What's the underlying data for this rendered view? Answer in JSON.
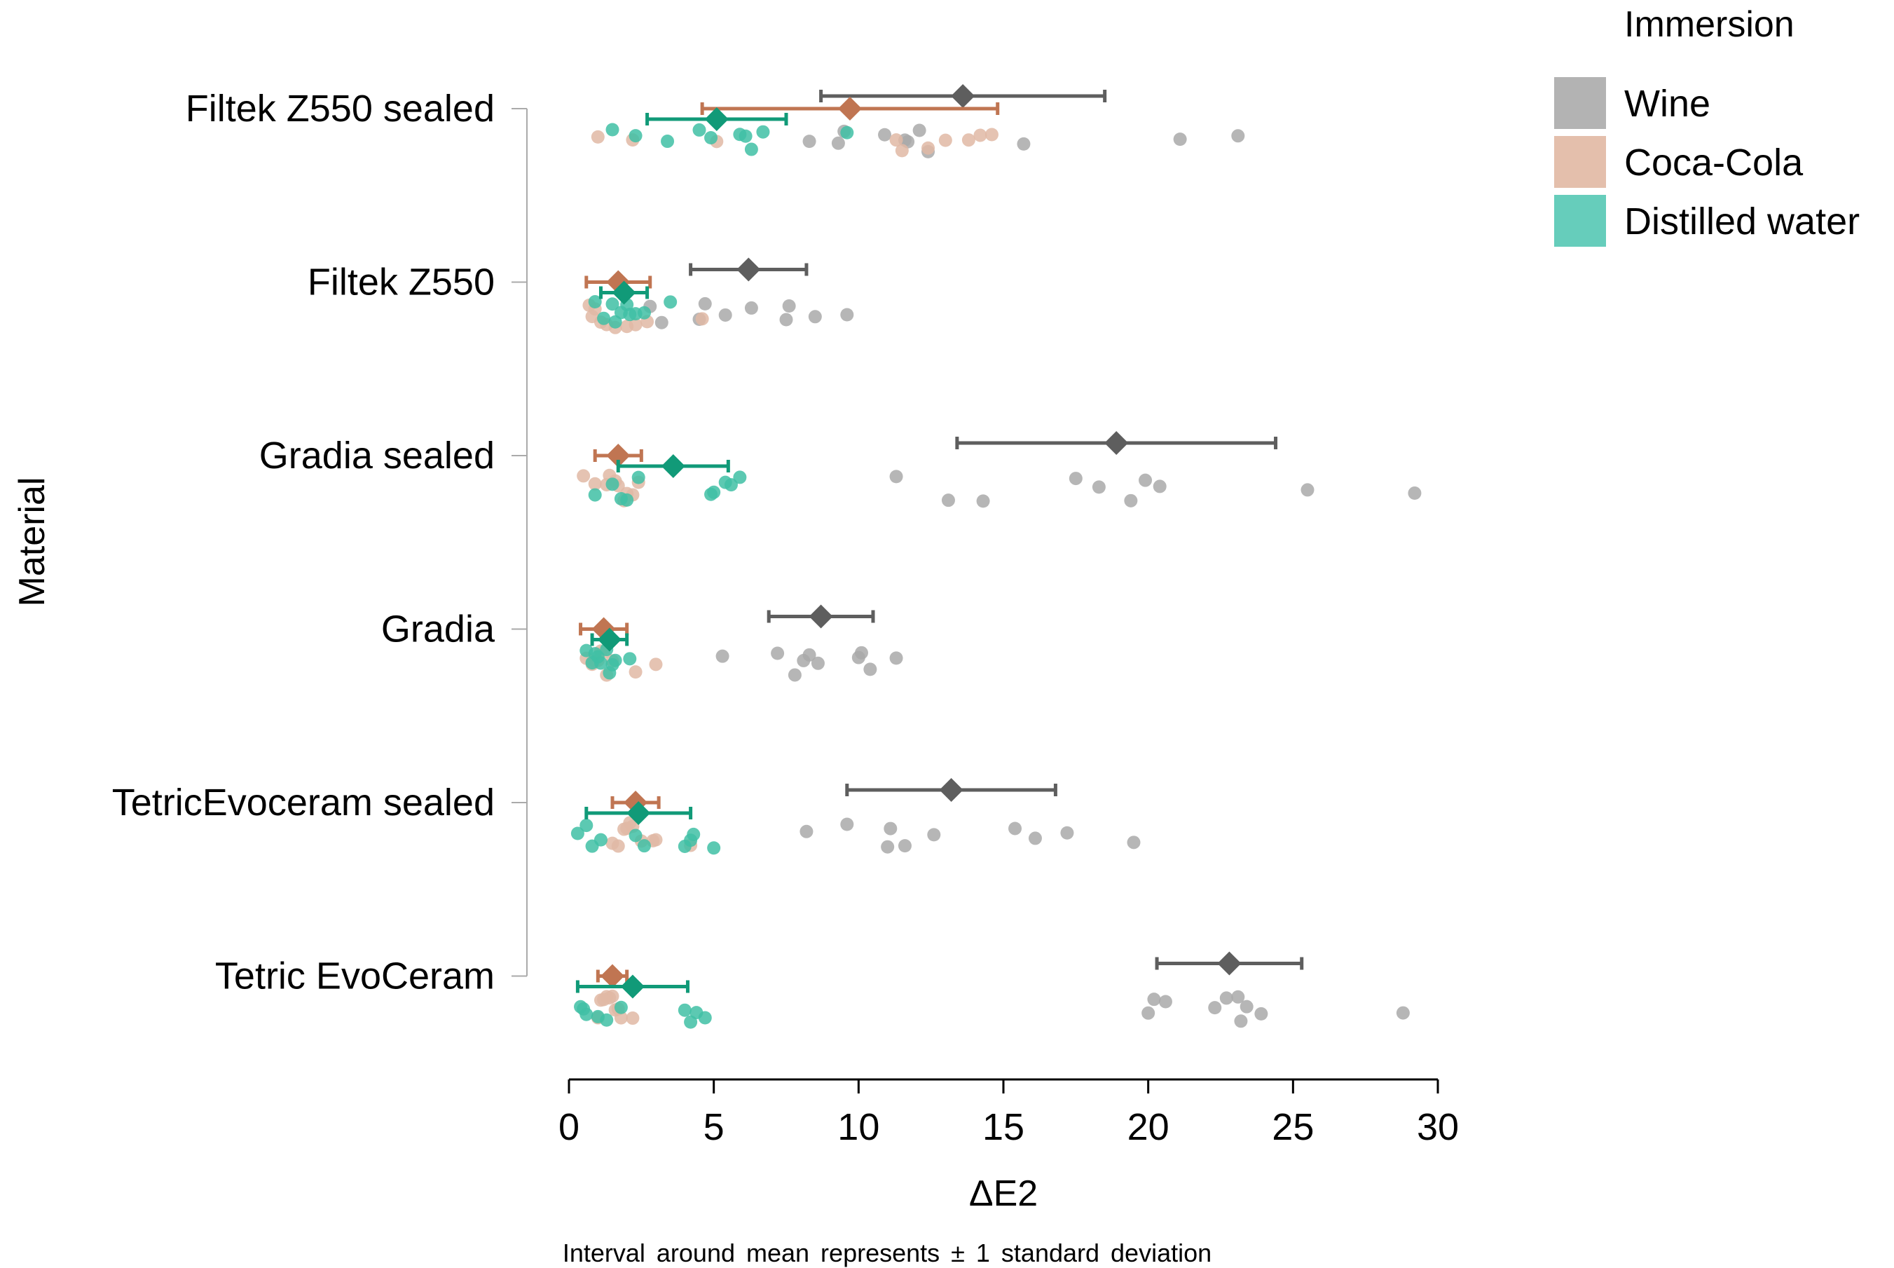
{
  "chart_data": {
    "type": "scatter",
    "title": "",
    "xlabel": "ΔE2",
    "ylabel": "Material",
    "xlim": [
      0,
      30
    ],
    "xticks": [
      0,
      5,
      10,
      15,
      20,
      25,
      30
    ],
    "caption": "Interval around mean represents ± 1 standard deviation",
    "legend": {
      "title": "Immersion",
      "position": "top-right",
      "entries": [
        {
          "label": "Wine",
          "color": "#b3b3b3"
        },
        {
          "label": "Coca-Cola",
          "color": "#e4bfac"
        },
        {
          "label": "Distilled water",
          "color": "#66cdbb"
        }
      ]
    },
    "categories": [
      "Filtek Z550 sealed",
      "Filtek Z550",
      "Gradia sealed",
      "Gradia",
      "TetricEvoceram sealed",
      "Tetric EvoCeram"
    ],
    "series": [
      {
        "name": "Wine",
        "point_color": "#a9a9a9",
        "summary_color": "#5e5e5e",
        "groups": [
          {
            "category": "Filtek Z550 sealed",
            "mean": 13.6,
            "sd": 4.9,
            "points": [
              8.3,
              9.3,
              9.5,
              10.9,
              11.6,
              11.7,
              12.1,
              12.4,
              15.7,
              21.1,
              23.1
            ]
          },
          {
            "category": "Filtek Z550",
            "mean": 6.2,
            "sd": 2.0,
            "points": [
              3.2,
              4.5,
              4.7,
              5.4,
              6.3,
              7.5,
              7.6,
              8.5,
              9.6,
              2.8
            ]
          },
          {
            "category": "Gradia sealed",
            "mean": 18.9,
            "sd": 5.5,
            "points": [
              11.3,
              13.1,
              14.3,
              17.5,
              18.3,
              19.4,
              19.9,
              20.4,
              25.5,
              29.2
            ]
          },
          {
            "category": "Gradia",
            "mean": 8.7,
            "sd": 1.8,
            "points": [
              5.3,
              7.2,
              7.8,
              8.1,
              8.3,
              8.6,
              10.0,
              10.1,
              10.4,
              11.3
            ]
          },
          {
            "category": "TetricEvoceram sealed",
            "mean": 13.2,
            "sd": 3.6,
            "points": [
              8.2,
              9.6,
              11.0,
              11.1,
              11.6,
              12.6,
              15.4,
              16.1,
              17.2,
              19.5
            ]
          },
          {
            "category": "Tetric EvoCeram",
            "mean": 22.8,
            "sd": 2.5,
            "points": [
              20.0,
              20.2,
              20.6,
              22.3,
              22.7,
              23.1,
              23.4,
              23.9,
              28.8,
              23.2
            ]
          }
        ]
      },
      {
        "name": "Coca-Cola",
        "point_color": "#e0b9a4",
        "summary_color": "#c07552",
        "groups": [
          {
            "category": "Filtek Z550 sealed",
            "mean": 9.7,
            "sd": 5.1,
            "points": [
              1.0,
              2.2,
              5.1,
              11.3,
              11.5,
              13.0,
              13.8,
              14.2,
              14.6,
              12.4
            ]
          },
          {
            "category": "Filtek Z550",
            "mean": 1.7,
            "sd": 1.1,
            "points": [
              0.7,
              0.9,
              1.1,
              1.3,
              1.6,
              2.0,
              2.3,
              2.7,
              4.6,
              0.8
            ]
          },
          {
            "category": "Gradia sealed",
            "mean": 1.7,
            "sd": 0.8,
            "points": [
              0.5,
              0.9,
              1.3,
              1.6,
              1.7,
              2.0,
              2.2,
              2.4,
              1.9,
              1.4
            ]
          },
          {
            "category": "Gradia",
            "mean": 1.2,
            "sd": 0.8,
            "points": [
              0.6,
              0.8,
              1.0,
              1.1,
              1.3,
              1.5,
              2.3,
              3.0,
              0.9,
              1.2
            ]
          },
          {
            "category": "TetricEvoceram sealed",
            "mean": 2.3,
            "sd": 0.8,
            "points": [
              1.5,
              1.7,
              1.9,
              2.1,
              2.2,
              2.5,
              2.9,
              3.0,
              4.2,
              2.0
            ]
          },
          {
            "category": "Tetric EvoCeram",
            "mean": 1.5,
            "sd": 0.5,
            "points": [
              1.0,
              1.1,
              1.3,
              1.4,
              1.5,
              1.6,
              1.8,
              2.2,
              1.2,
              1.7
            ]
          }
        ]
      },
      {
        "name": "Distilled water",
        "point_color": "#3fc0a5",
        "summary_color": "#119a78",
        "groups": [
          {
            "category": "Filtek Z550 sealed",
            "mean": 5.1,
            "sd": 2.4,
            "points": [
              1.5,
              2.3,
              3.4,
              4.5,
              4.9,
              5.9,
              6.1,
              6.3,
              6.7,
              9.6
            ]
          },
          {
            "category": "Filtek Z550",
            "mean": 1.9,
            "sd": 0.8,
            "points": [
              0.9,
              1.2,
              1.5,
              1.8,
              2.0,
              2.1,
              2.6,
              3.5,
              1.6,
              2.3
            ]
          },
          {
            "category": "Gradia sealed",
            "mean": 3.6,
            "sd": 1.9,
            "points": [
              0.9,
              1.5,
              2.0,
              4.9,
              5.0,
              5.4,
              5.6,
              5.9,
              1.8,
              2.4
            ]
          },
          {
            "category": "Gradia",
            "mean": 1.4,
            "sd": 0.6,
            "points": [
              0.6,
              0.9,
              1.0,
              1.3,
              1.5,
              1.6,
              2.1,
              1.1,
              1.4,
              0.8
            ]
          },
          {
            "category": "TetricEvoceram sealed",
            "mean": 2.4,
            "sd": 1.8,
            "points": [
              0.3,
              0.6,
              0.8,
              1.1,
              2.3,
              4.0,
              4.2,
              4.3,
              5.0,
              2.6
            ]
          },
          {
            "category": "Tetric EvoCeram",
            "mean": 2.2,
            "sd": 1.9,
            "points": [
              0.4,
              0.5,
              0.6,
              1.0,
              1.3,
              4.0,
              4.2,
              4.4,
              4.7,
              1.8
            ]
          }
        ]
      }
    ]
  }
}
